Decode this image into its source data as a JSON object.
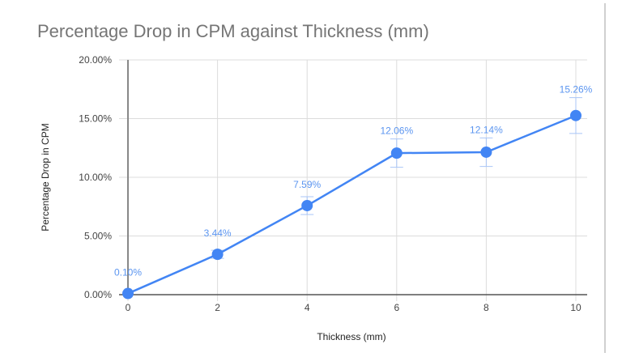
{
  "chart_data": {
    "type": "line",
    "title": "Percentage Drop in CPM against Thickness (mm)",
    "xlabel": "Thickness (mm)",
    "ylabel": "Percentage Drop in CPM",
    "x": [
      0,
      2,
      4,
      6,
      8,
      10
    ],
    "values": [
      0.1,
      3.44,
      7.59,
      12.06,
      12.14,
      15.26
    ],
    "data_labels": [
      "0.10%",
      "3.44%",
      "7.59%",
      "12.06%",
      "12.14%",
      "15.26%"
    ],
    "error_bars": "percentage (~±5%)",
    "xlim": [
      0,
      10
    ],
    "ylim": [
      0,
      20
    ],
    "x_ticks": [
      "0",
      "2",
      "4",
      "6",
      "8",
      "10"
    ],
    "y_ticks": [
      "0.00%",
      "5.00%",
      "10.00%",
      "15.00%",
      "20.00%"
    ],
    "grid": true,
    "legend": "none",
    "series_color": "#4285f4",
    "label_color": "#5b95f0"
  },
  "title": "Percentage Drop in CPM against Thickness (mm)"
}
